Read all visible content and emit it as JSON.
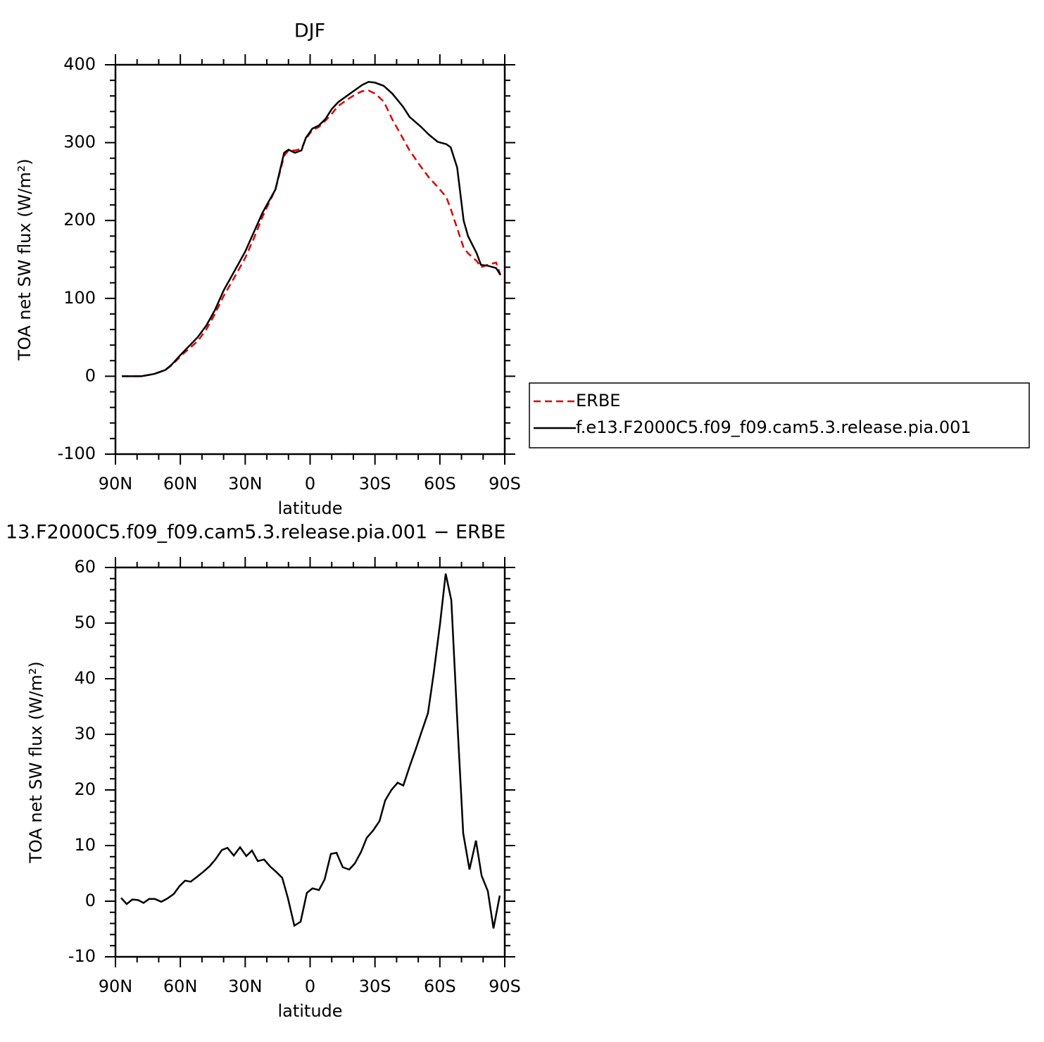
{
  "chart_data": [
    {
      "type": "line",
      "title": "DJF",
      "x_label": "latitude",
      "y_label": "TOA net SW flux (W/m²)",
      "xlim": [
        90,
        -90
      ],
      "xticks": [
        {
          "value": 90,
          "label": "90N"
        },
        {
          "value": 60,
          "label": "60N"
        },
        {
          "value": 30,
          "label": "30N"
        },
        0,
        {
          "value": -30,
          "label": "30S"
        },
        {
          "value": -60,
          "label": "60S"
        },
        {
          "value": -90,
          "label": "90S"
        }
      ],
      "ylim": [
        -100,
        400
      ],
      "yticks": [
        -100,
        0,
        100,
        200,
        300,
        400
      ],
      "x": [
        87,
        78,
        72,
        67,
        64,
        59,
        52,
        48,
        44,
        40,
        35,
        30,
        26,
        22,
        16,
        12,
        10,
        7,
        4,
        2,
        -1,
        -4,
        -7,
        -10,
        -13,
        -17,
        -21,
        -24,
        -27,
        -30,
        -34,
        -38,
        -43,
        -46,
        -51,
        -55,
        -59,
        -63,
        -65,
        -68,
        -71,
        -73,
        -77,
        -79,
        -82,
        -86,
        -88
      ],
      "series": [
        {
          "name": "ERBE",
          "color": "#e00000",
          "style": "dashed",
          "values": [
            0,
            0,
            3,
            8,
            14,
            28,
            45,
            60,
            80,
            103,
            127,
            152,
            177,
            205,
            240,
            283,
            290,
            290,
            292,
            305,
            316,
            320,
            328,
            337,
            347,
            355,
            362,
            366,
            367,
            363,
            353,
            330,
            305,
            290,
            270,
            255,
            243,
            230,
            215,
            190,
            165,
            158,
            148,
            140,
            143,
            146,
            130
          ]
        },
        {
          "name": "f.e13.F2000C5.f09_f09.cam5.3.release.pia.001",
          "color": "#000000",
          "style": "solid",
          "values": [
            0,
            0,
            3,
            8,
            15,
            30,
            50,
            65,
            85,
            110,
            135,
            160,
            185,
            210,
            240,
            287,
            291,
            287,
            290,
            306,
            318,
            322,
            330,
            343,
            352,
            360,
            368,
            374,
            378,
            377,
            373,
            363,
            346,
            333,
            321,
            310,
            301,
            298,
            294,
            268,
            200,
            180,
            158,
            143,
            142,
            139,
            130
          ]
        }
      ]
    },
    {
      "type": "line",
      "title": "13.F2000C5.f09_f09.cam5.3.release.pia.001 − ERBE",
      "x_label": "latitude",
      "y_label": "TOA net SW flux (W/m²)",
      "xlim": [
        90,
        -90
      ],
      "xticks": [
        {
          "value": 90,
          "label": "90N"
        },
        {
          "value": 60,
          "label": "60N"
        },
        {
          "value": 30,
          "label": "30N"
        },
        0,
        {
          "value": -30,
          "label": "30S"
        },
        {
          "value": -60,
          "label": "60S"
        },
        {
          "value": -90,
          "label": "90S"
        }
      ],
      "ylim": [
        -10,
        60
      ],
      "yticks": [
        -10,
        0,
        10,
        20,
        30,
        40,
        50,
        60
      ],
      "x": [
        87.4,
        84.8,
        82.2,
        79.6,
        77,
        74.4,
        71.8,
        68.8,
        65.9,
        63,
        60.4,
        57.8,
        55.2,
        52.2,
        49.3,
        46.4,
        43.8,
        40.8,
        38.2,
        35.3,
        32.4,
        29.5,
        26.9,
        24.2,
        21.3,
        18.4,
        15.8,
        12.9,
        10.3,
        7.3,
        4.4,
        1.5,
        -1.1,
        -4.1,
        -6.7,
        -9.6,
        -12.2,
        -15.1,
        -18.1,
        -20.7,
        -23.6,
        -26.2,
        -29.1,
        -32.1,
        -34.7,
        -37.6,
        -40.5,
        -43.1,
        -46.1,
        -49,
        -51.6,
        -54.5,
        -57.1,
        -60.1,
        -62.7,
        -65.3,
        -68.2,
        -70.8,
        -73.7,
        -76.7,
        -79.3,
        -82.2,
        -84.8,
        -87.7
      ],
      "series": [
        {
          "color": "#000000",
          "style": "solid",
          "values": [
            0.6,
            -0.5,
            0.3,
            0.2,
            -0.3,
            0.4,
            0.4,
            -0.1,
            0.5,
            1.3,
            2.7,
            3.7,
            3.5,
            4.4,
            5.3,
            6.3,
            7.5,
            9.2,
            9.6,
            8.2,
            9.7,
            8.1,
            9.1,
            7.2,
            7.5,
            6.2,
            5.3,
            4.2,
            0.6,
            -4.4,
            -3.7,
            1.5,
            2.3,
            2.0,
            3.9,
            8.5,
            8.7,
            6.1,
            5.7,
            6.8,
            8.9,
            11.4,
            12.7,
            14.4,
            18.1,
            20.0,
            21.3,
            20.8,
            24.3,
            27.5,
            30.5,
            33.8,
            40.8,
            49.9,
            58.9,
            54.1,
            31.4,
            12.2,
            5.7,
            10.9,
            4.6,
            1.8,
            -4.9,
            1.0
          ]
        }
      ]
    }
  ]
}
